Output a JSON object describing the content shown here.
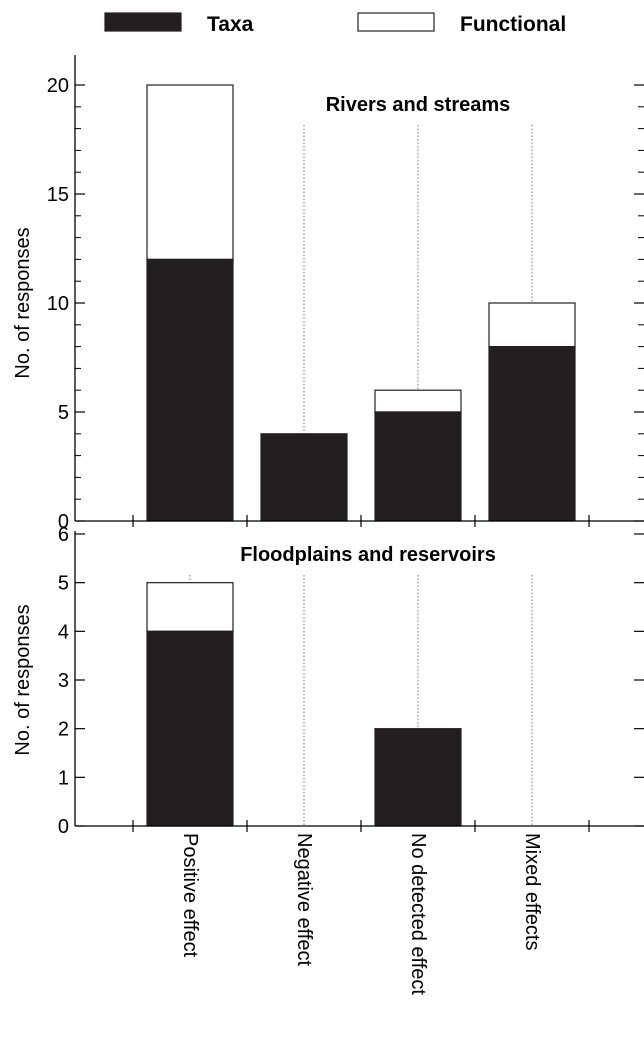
{
  "legend": {
    "items": [
      {
        "label": "Taxa",
        "color": "#231f20"
      },
      {
        "label": "Functional",
        "color": "#ffffff"
      }
    ]
  },
  "colors": {
    "taxa": "#231f20",
    "functional": "#ffffff",
    "axis": "#000000",
    "dotted_line": "#777777"
  },
  "chart_data": [
    {
      "type": "bar",
      "stacked": true,
      "title": "Rivers and streams",
      "ylabel": "No. of responses",
      "categories": [
        "Positive effect",
        "Negative effect",
        "No detected effect",
        "Mixed effects"
      ],
      "series": [
        {
          "name": "Taxa",
          "values": [
            12,
            4,
            5,
            8
          ]
        },
        {
          "name": "Functional",
          "values": [
            8,
            0,
            1,
            2
          ]
        }
      ],
      "ylim": [
        0,
        20
      ],
      "yticks": [
        0,
        5,
        10,
        15,
        20
      ],
      "minor_tick_step": 1,
      "legend": "top",
      "grid": false
    },
    {
      "type": "bar",
      "stacked": true,
      "title": "Floodplains and reservoirs",
      "ylabel": "No. of responses",
      "categories": [
        "Positive effect",
        "Negative effect",
        "No detected effect",
        "Mixed effects"
      ],
      "series": [
        {
          "name": "Taxa",
          "values": [
            4,
            0,
            2,
            0
          ]
        },
        {
          "name": "Functional",
          "values": [
            1,
            0,
            0,
            0
          ]
        }
      ],
      "ylim": [
        0,
        6
      ],
      "yticks": [
        0,
        1,
        2,
        3,
        4,
        5,
        6
      ],
      "minor_tick_step": 1,
      "legend": "top",
      "grid": false
    }
  ]
}
